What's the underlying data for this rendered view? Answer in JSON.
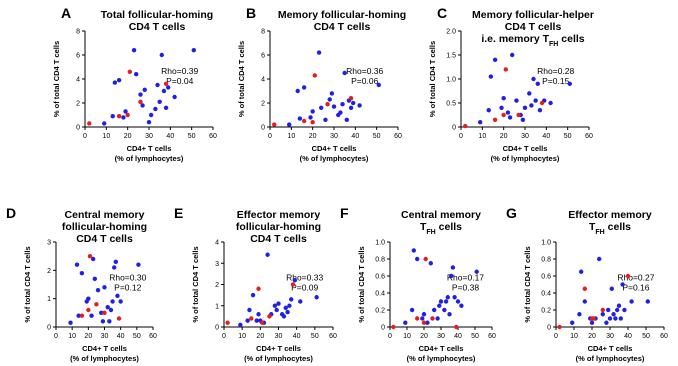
{
  "colors": {
    "blue": "#1f1fe6",
    "red": "#e51d1d",
    "axis": "#000000"
  },
  "chart_data": [
    {
      "id": "A",
      "type": "scatter",
      "title_lines": [
        "Total follicular-homing",
        "CD4 T cells"
      ],
      "xlabel_lines": [
        "CD4+ T cells",
        "(% of lymphocytes)"
      ],
      "ylabel": "% of total CD4 T cells",
      "xlim": [
        0,
        60
      ],
      "ylim": [
        0,
        8
      ],
      "xticks": [
        "0",
        "10",
        "20",
        "30",
        "40",
        "50",
        "60"
      ],
      "yticks": [
        "0",
        "2",
        "4",
        "6",
        "8"
      ],
      "stats": [
        "Rho=0.39",
        "P=0.04"
      ],
      "series": [
        {
          "color": "blue",
          "points": [
            [
              9,
              0.3
            ],
            [
              13,
              0.9
            ],
            [
              14,
              3.7
            ],
            [
              16,
              3.9
            ],
            [
              18,
              0.8
            ],
            [
              19,
              1.3
            ],
            [
              23,
              6.4
            ],
            [
              24,
              4.4
            ],
            [
              26,
              2.7
            ],
            [
              27,
              1.8
            ],
            [
              28,
              3.1
            ],
            [
              30,
              0.4
            ],
            [
              31,
              1.0
            ],
            [
              33,
              1.5
            ],
            [
              34,
              3.5
            ],
            [
              35,
              2.1
            ],
            [
              36,
              6.0
            ],
            [
              37,
              3.0
            ],
            [
              38,
              1.6
            ],
            [
              39,
              3.3
            ],
            [
              42,
              2.5
            ],
            [
              51,
              6.4
            ]
          ]
        },
        {
          "color": "red",
          "points": [
            [
              2,
              0.3
            ],
            [
              16,
              0.9
            ],
            [
              20,
              1.0
            ],
            [
              21,
              4.6
            ],
            [
              26,
              2.1
            ],
            [
              38,
              3.6
            ]
          ]
        }
      ]
    },
    {
      "id": "B",
      "type": "scatter",
      "title_lines": [
        "Memory follicular-homing",
        "CD4 T cells"
      ],
      "xlabel_lines": [
        "CD4+ T cells",
        "(% of lymphocytes)"
      ],
      "ylabel": "% of total CD4 T cells",
      "xlim": [
        0,
        60
      ],
      "ylim": [
        0,
        8
      ],
      "xticks": [
        "0",
        "10",
        "20",
        "30",
        "40",
        "50",
        "60"
      ],
      "yticks": [
        "0",
        "2",
        "4",
        "6",
        "8"
      ],
      "stats": [
        "Rho=0.36",
        "P=0.06"
      ],
      "series": [
        {
          "color": "blue",
          "points": [
            [
              9,
              0.2
            ],
            [
              13,
              3.0
            ],
            [
              14,
              0.7
            ],
            [
              16,
              3.3
            ],
            [
              19,
              0.8
            ],
            [
              20,
              1.3
            ],
            [
              23,
              6.2
            ],
            [
              24,
              1.6
            ],
            [
              26,
              0.6
            ],
            [
              28,
              2.3
            ],
            [
              29,
              2.8
            ],
            [
              30,
              1.7
            ],
            [
              32,
              1.0
            ],
            [
              33,
              1.2
            ],
            [
              34,
              1.9
            ],
            [
              35,
              4.5
            ],
            [
              36,
              0.6
            ],
            [
              37,
              2.2
            ],
            [
              38,
              1.6
            ],
            [
              39,
              2.0
            ],
            [
              42,
              1.8
            ],
            [
              51,
              3.5
            ]
          ]
        },
        {
          "color": "red",
          "points": [
            [
              2,
              0.2
            ],
            [
              16,
              0.5
            ],
            [
              20,
              0.4
            ],
            [
              21,
              4.3
            ],
            [
              27,
              1.9
            ],
            [
              38,
              2.4
            ]
          ]
        }
      ]
    },
    {
      "id": "C",
      "type": "scatter",
      "title_lines": [
        "Memory follicular-helper",
        "CD4 T cells",
        "i.e. memory T_FH cells"
      ],
      "xlabel_lines": [
        "CD4+ T cells",
        "(% of lymphocytes)"
      ],
      "ylabel": "% of total CD4 T cells",
      "xlim": [
        0,
        60
      ],
      "ylim": [
        0,
        2.0
      ],
      "xticks": [
        "0",
        "10",
        "20",
        "30",
        "40",
        "50",
        "60"
      ],
      "yticks": [
        "0",
        "0.5",
        "1.0",
        "1.5",
        "2.0"
      ],
      "stats": [
        "Rho=0.28",
        "P=0.15"
      ],
      "series": [
        {
          "color": "blue",
          "points": [
            [
              9,
              0.1
            ],
            [
              13,
              0.35
            ],
            [
              14,
              1.05
            ],
            [
              16,
              1.4
            ],
            [
              19,
              0.4
            ],
            [
              20,
              0.6
            ],
            [
              22,
              0.3
            ],
            [
              23,
              0.2
            ],
            [
              24,
              1.5
            ],
            [
              26,
              0.55
            ],
            [
              28,
              0.25
            ],
            [
              29,
              0.15
            ],
            [
              30,
              0.4
            ],
            [
              32,
              0.7
            ],
            [
              33,
              0.45
            ],
            [
              34,
              1.0
            ],
            [
              35,
              0.55
            ],
            [
              36,
              0.9
            ],
            [
              37,
              0.35
            ],
            [
              39,
              0.55
            ],
            [
              42,
              0.5
            ],
            [
              51,
              0.9
            ]
          ]
        },
        {
          "color": "red",
          "points": [
            [
              2,
              0.02
            ],
            [
              16,
              0.15
            ],
            [
              20,
              0.25
            ],
            [
              21,
              1.2
            ],
            [
              27,
              0.25
            ],
            [
              38,
              0.5
            ]
          ]
        }
      ]
    },
    {
      "id": "D",
      "type": "scatter",
      "title_lines": [
        "Central memory",
        "follicular-homing",
        "CD4 T cells"
      ],
      "xlabel_lines": [
        "CD4+ T cells",
        "(% of lymphocytes)"
      ],
      "ylabel": "% of total CD4 T cells",
      "xlim": [
        0,
        60
      ],
      "ylim": [
        0,
        3
      ],
      "xticks": [
        "0",
        "10",
        "20",
        "30",
        "40",
        "50",
        "60"
      ],
      "yticks": [
        "0",
        "1",
        "2",
        "3"
      ],
      "stats": [
        "Rho=0.30",
        "P=0.12"
      ],
      "series": [
        {
          "color": "blue",
          "points": [
            [
              9,
              0.15
            ],
            [
              13,
              2.2
            ],
            [
              14,
              0.4
            ],
            [
              16,
              1.9
            ],
            [
              19,
              0.9
            ],
            [
              20,
              1.0
            ],
            [
              22,
              0.4
            ],
            [
              23,
              2.4
            ],
            [
              24,
              1.7
            ],
            [
              26,
              1.3
            ],
            [
              28,
              0.5
            ],
            [
              29,
              0.2
            ],
            [
              30,
              1.4
            ],
            [
              32,
              0.7
            ],
            [
              33,
              0.2
            ],
            [
              34,
              0.6
            ],
            [
              35,
              0.9
            ],
            [
              36,
              2.1
            ],
            [
              37,
              2.3
            ],
            [
              38,
              1.1
            ],
            [
              40,
              0.9
            ],
            [
              51,
              2.2
            ]
          ]
        },
        {
          "color": "red",
          "points": [
            [
              16,
              0.4
            ],
            [
              20,
              0.6
            ],
            [
              21,
              2.5
            ],
            [
              25,
              0.8
            ],
            [
              30,
              0.5
            ],
            [
              39,
              0.3
            ]
          ]
        }
      ]
    },
    {
      "id": "E",
      "type": "scatter",
      "title_lines": [
        "Effector memory",
        "follicular-homing",
        "CD4 T cells"
      ],
      "xlabel_lines": [
        "CD4+ T cells",
        "(% of lymphocytes)"
      ],
      "ylabel": "% of total CD4 T cells",
      "xlim": [
        0,
        60
      ],
      "ylim": [
        0,
        4
      ],
      "xticks": [
        "0",
        "10",
        "20",
        "30",
        "40",
        "50",
        "60"
      ],
      "yticks": [
        "0",
        "1",
        "2",
        "3",
        "4"
      ],
      "stats": [
        "Rho=0.33",
        "P=0.09"
      ],
      "series": [
        {
          "color": "blue",
          "points": [
            [
              9,
              0.1
            ],
            [
              13,
              0.3
            ],
            [
              14,
              0.8
            ],
            [
              16,
              1.5
            ],
            [
              18,
              0.3
            ],
            [
              19,
              0.6
            ],
            [
              20,
              0.3
            ],
            [
              22,
              0.2
            ],
            [
              24,
              3.4
            ],
            [
              26,
              0.6
            ],
            [
              28,
              1.0
            ],
            [
              29,
              0.8
            ],
            [
              30,
              1.1
            ],
            [
              32,
              0.6
            ],
            [
              33,
              0.5
            ],
            [
              34,
              0.9
            ],
            [
              35,
              0.7
            ],
            [
              36,
              1.0
            ],
            [
              37,
              1.3
            ],
            [
              39,
              2.2
            ],
            [
              42,
              1.2
            ],
            [
              51,
              1.4
            ]
          ]
        },
        {
          "color": "red",
          "points": [
            [
              2,
              0.2
            ],
            [
              15,
              0.4
            ],
            [
              19,
              1.8
            ],
            [
              21,
              0.2
            ],
            [
              25,
              0.5
            ],
            [
              38,
              2.0
            ]
          ]
        }
      ]
    },
    {
      "id": "F",
      "type": "scatter",
      "title_lines": [
        "Central memory",
        "T_FH cells"
      ],
      "xlabel_lines": [
        "CD4+ T cells",
        "(% of lymphocytes)"
      ],
      "ylabel": "% of total CD4 T cells",
      "xlim": [
        0,
        60
      ],
      "ylim": [
        0,
        1.0
      ],
      "xticks": [
        "0",
        "10",
        "20",
        "30",
        "40",
        "50",
        "60"
      ],
      "yticks": [
        "0",
        "0.2",
        "0.4",
        "0.6",
        "0.8",
        "1.0"
      ],
      "stats": [
        "Rho=0.17",
        "P=0.38"
      ],
      "series": [
        {
          "color": "blue",
          "points": [
            [
              9,
              0.05
            ],
            [
              13,
              0.2
            ],
            [
              14,
              0.9
            ],
            [
              16,
              0.8
            ],
            [
              19,
              0.1
            ],
            [
              20,
              0.15
            ],
            [
              22,
              0.05
            ],
            [
              24,
              0.75
            ],
            [
              26,
              0.2
            ],
            [
              28,
              0.1
            ],
            [
              29,
              0.25
            ],
            [
              30,
              0.3
            ],
            [
              32,
              0.2
            ],
            [
              33,
              0.3
            ],
            [
              34,
              0.35
            ],
            [
              35,
              0.15
            ],
            [
              36,
              0.6
            ],
            [
              37,
              0.7
            ],
            [
              38,
              0.35
            ],
            [
              40,
              0.3
            ],
            [
              42,
              0.25
            ],
            [
              51,
              0.65
            ]
          ]
        },
        {
          "color": "red",
          "points": [
            [
              2,
              0.0
            ],
            [
              16,
              0.1
            ],
            [
              20,
              0.05
            ],
            [
              21,
              0.8
            ],
            [
              25,
              0.1
            ],
            [
              39,
              0.0
            ]
          ]
        }
      ]
    },
    {
      "id": "G",
      "type": "scatter",
      "title_lines": [
        "Effector memory",
        "T_FH cells"
      ],
      "xlabel_lines": [
        "CD4+ T cells",
        "(% of lymphocytes)"
      ],
      "ylabel": "% of total CD4 T cells",
      "xlim": [
        0,
        60
      ],
      "ylim": [
        0,
        1.0
      ],
      "xticks": [
        "0",
        "10",
        "20",
        "30",
        "40",
        "50",
        "60"
      ],
      "yticks": [
        "0",
        "0.2",
        "0.4",
        "0.6",
        "0.8",
        "1.0"
      ],
      "stats": [
        "Rho=0.27",
        "P=0.16"
      ],
      "series": [
        {
          "color": "blue",
          "points": [
            [
              9,
              0.05
            ],
            [
              13,
              0.15
            ],
            [
              14,
              0.65
            ],
            [
              16,
              0.3
            ],
            [
              19,
              0.1
            ],
            [
              20,
              0.05
            ],
            [
              22,
              0.1
            ],
            [
              24,
              0.8
            ],
            [
              26,
              0.15
            ],
            [
              28,
              0.05
            ],
            [
              29,
              0.2
            ],
            [
              30,
              0.1
            ],
            [
              31,
              0.45
            ],
            [
              32,
              0.15
            ],
            [
              33,
              0.1
            ],
            [
              34,
              0.2
            ],
            [
              35,
              0.25
            ],
            [
              36,
              0.1
            ],
            [
              37,
              0.5
            ],
            [
              38,
              0.2
            ],
            [
              42,
              0.3
            ],
            [
              51,
              0.3
            ]
          ]
        },
        {
          "color": "red",
          "points": [
            [
              2,
              0.0
            ],
            [
              16,
              0.45
            ],
            [
              20,
              0.1
            ],
            [
              21,
              0.1
            ],
            [
              26,
              0.2
            ],
            [
              40,
              0.6
            ]
          ]
        }
      ]
    }
  ]
}
